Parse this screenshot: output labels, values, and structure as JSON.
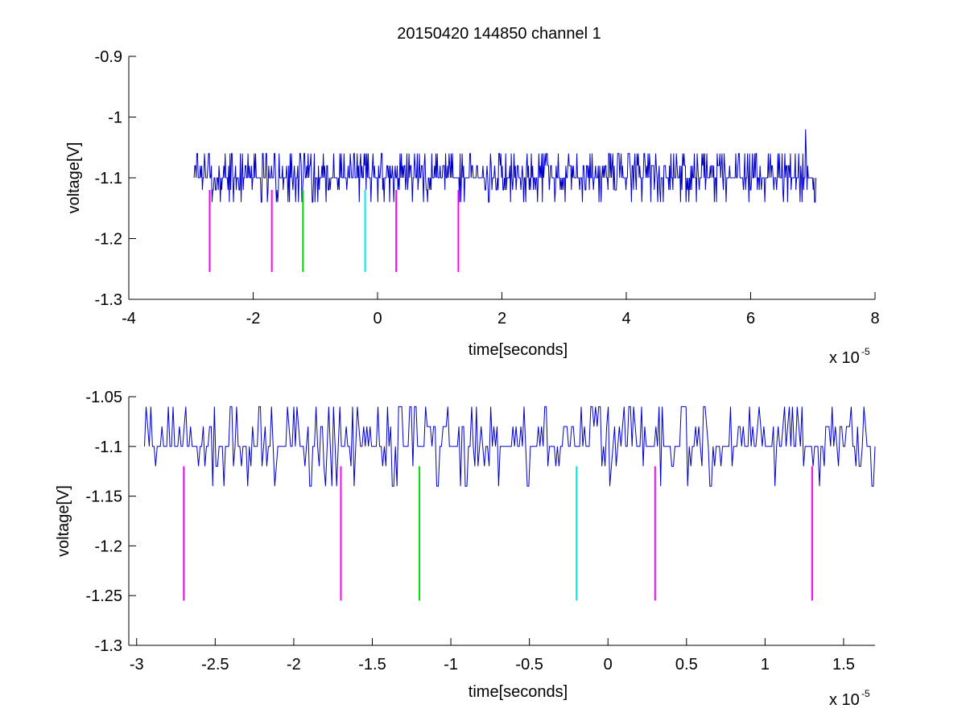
{
  "figure": {
    "title": "20150420 144850 channel 1"
  },
  "colors": {
    "trace": "#0000c8",
    "magenta": "#ff00ff",
    "green": "#00e000",
    "cyan": "#00e8f0",
    "axes": "#000000",
    "background": "#ffffff"
  },
  "chart_data": [
    {
      "type": "line",
      "title": "20150420 144850 channel 1",
      "xlabel": "time[seconds]",
      "ylabel": "voltage[V]",
      "x_exponent_base": "x 10",
      "x_exponent_power": "-5",
      "xlim": [
        -4,
        8
      ],
      "ylim": [
        -1.3,
        -0.9
      ],
      "x_ticks": [
        -4,
        -2,
        0,
        2,
        4,
        6,
        8
      ],
      "x_tick_labels": [
        "-4",
        "-2",
        "0",
        "2",
        "4",
        "6",
        "8"
      ],
      "y_ticks": [
        -1.3,
        -1.2,
        -1.1,
        -1,
        -0.9
      ],
      "y_tick_labels": [
        "-1.3",
        "-1.2",
        "-1.1",
        "-1",
        "-0.9"
      ],
      "grid": false,
      "series": [
        {
          "color": "trace",
          "x_range": [
            -2.95,
            7.05
          ],
          "baseline": -1.1,
          "levels": [
            -1.14,
            -1.12,
            -1.1,
            -1.08,
            -1.06
          ],
          "spike": {
            "x": 6.88,
            "y": -1.02
          }
        }
      ],
      "markers": [
        {
          "x": -2.7,
          "y0": -1.12,
          "y1": -1.255,
          "color": "magenta"
        },
        {
          "x": -1.7,
          "y0": -1.12,
          "y1": -1.255,
          "color": "magenta"
        },
        {
          "x": -1.2,
          "y0": -1.12,
          "y1": -1.255,
          "color": "green"
        },
        {
          "x": -0.2,
          "y0": -1.12,
          "y1": -1.255,
          "color": "cyan"
        },
        {
          "x": 0.3,
          "y0": -1.12,
          "y1": -1.255,
          "color": "magenta"
        },
        {
          "x": 1.3,
          "y0": -1.12,
          "y1": -1.255,
          "color": "magenta"
        }
      ]
    },
    {
      "type": "line",
      "title": "",
      "xlabel": "time[seconds]",
      "ylabel": "voltage[V]",
      "x_exponent_base": "x 10",
      "x_exponent_power": "-5",
      "xlim": [
        -3.05,
        1.7
      ],
      "ylim": [
        -1.3,
        -1.05
      ],
      "x_ticks": [
        -3,
        -2.5,
        -2,
        -1.5,
        -1,
        -0.5,
        0,
        0.5,
        1,
        1.5
      ],
      "x_tick_labels": [
        "-3",
        "-2.5",
        "-2",
        "-1.5",
        "-1",
        "-0.5",
        "0",
        "0.5",
        "1",
        "1.5"
      ],
      "y_ticks": [
        -1.3,
        -1.25,
        -1.2,
        -1.15,
        -1.1,
        -1.05
      ],
      "y_tick_labels": [
        "-1.3",
        "-1.25",
        "-1.2",
        "-1.15",
        "-1.1",
        "-1.05"
      ],
      "grid": false,
      "series": [
        {
          "color": "trace",
          "x_range": [
            -2.95,
            1.7
          ],
          "baseline": -1.1,
          "levels": [
            -1.14,
            -1.12,
            -1.1,
            -1.08,
            -1.06
          ]
        }
      ],
      "markers": [
        {
          "x": -2.7,
          "y0": -1.12,
          "y1": -1.255,
          "color": "magenta"
        },
        {
          "x": -1.7,
          "y0": -1.12,
          "y1": -1.255,
          "color": "magenta"
        },
        {
          "x": -1.2,
          "y0": -1.12,
          "y1": -1.255,
          "color": "green"
        },
        {
          "x": -0.2,
          "y0": -1.12,
          "y1": -1.255,
          "color": "cyan"
        },
        {
          "x": 0.3,
          "y0": -1.12,
          "y1": -1.255,
          "color": "magenta"
        },
        {
          "x": 1.3,
          "y0": -1.12,
          "y1": -1.255,
          "color": "magenta"
        }
      ]
    }
  ]
}
